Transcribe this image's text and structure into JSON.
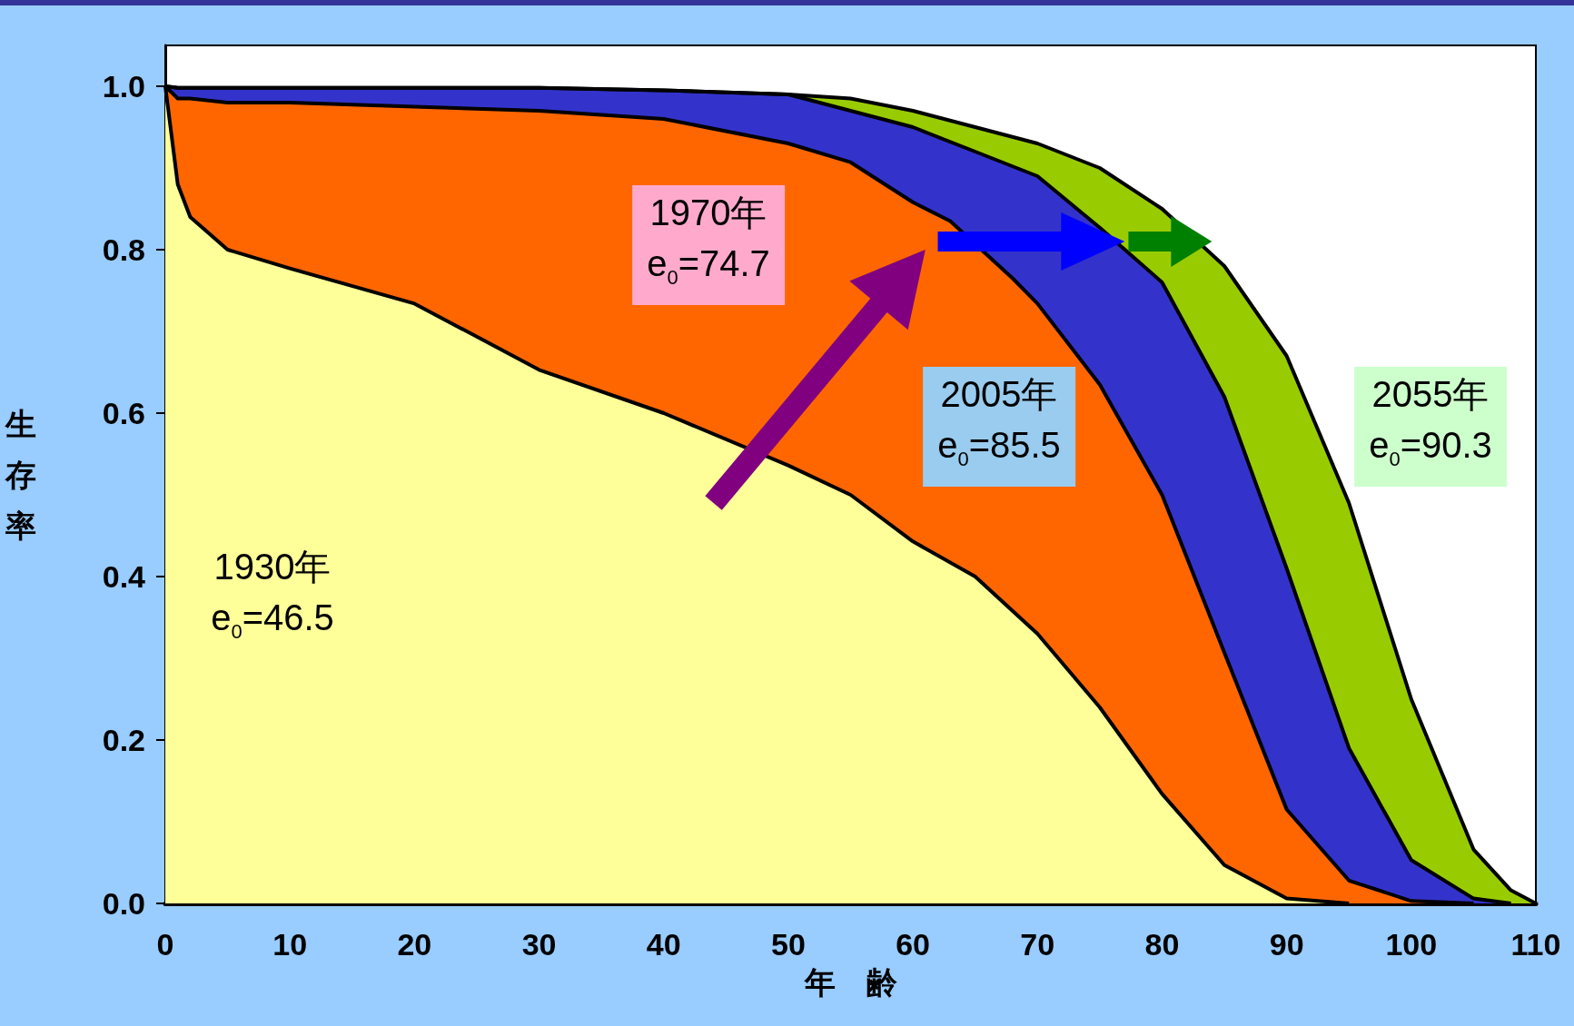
{
  "chart_data": {
    "type": "area",
    "xlabel": "年　齢",
    "ylabel": "生存率",
    "x": [
      0,
      1,
      2,
      5,
      10,
      20,
      30,
      40,
      50,
      55,
      60,
      65,
      70,
      75,
      80,
      85,
      90,
      95,
      100,
      105,
      108,
      110
    ],
    "series": [
      {
        "color": "#99cc00",
        "values": [
          1.0,
          0.998,
          0.998,
          0.998,
          0.998,
          0.998,
          0.998,
          0.995,
          0.99,
          0.985,
          0.97,
          0.95,
          0.93,
          0.9,
          0.85,
          0.78,
          0.67,
          0.49,
          0.25,
          0.066,
          0.016,
          0
        ]
      },
      {
        "color": "#3333cc",
        "x": [
          0,
          1,
          2,
          5,
          10,
          20,
          30,
          40,
          50,
          55,
          60,
          65,
          70,
          75,
          80,
          85,
          90,
          95,
          100,
          105,
          108
        ],
        "values": [
          1.0,
          0.998,
          0.998,
          0.998,
          0.998,
          0.998,
          0.998,
          0.995,
          0.99,
          0.97,
          0.95,
          0.92,
          0.89,
          0.827,
          0.76,
          0.62,
          0.41,
          0.19,
          0.053,
          0.006,
          0
        ]
      },
      {
        "color": "#ff6600",
        "x": [
          0,
          1,
          2,
          5,
          10,
          20,
          30,
          40,
          50,
          55,
          60,
          63,
          68,
          70,
          75,
          80,
          85,
          90,
          95,
          100,
          105
        ],
        "values": [
          1.0,
          0.985,
          0.985,
          0.98,
          0.98,
          0.975,
          0.97,
          0.96,
          0.93,
          0.907,
          0.858,
          0.835,
          0.765,
          0.734,
          0.635,
          0.5,
          0.307,
          0.115,
          0.028,
          0.003,
          0
        ]
      },
      {
        "color": "#ffff99",
        "x": [
          0,
          1,
          2,
          5,
          10,
          20,
          30,
          40,
          50,
          55,
          60,
          65,
          70,
          75,
          80,
          85,
          90,
          95
        ],
        "values": [
          1.0,
          0.88,
          0.84,
          0.8,
          0.777,
          0.734,
          0.653,
          0.6,
          0.536,
          0.5,
          0.443,
          0.4,
          0.33,
          0.24,
          0.134,
          0.047,
          0.006,
          0
        ]
      }
    ],
    "xlim": [
      0,
      110
    ],
    "xticks": [
      0,
      10,
      20,
      30,
      40,
      50,
      60,
      70,
      80,
      90,
      100,
      110
    ],
    "ylim": [
      0,
      1.05
    ],
    "yticks": [
      {
        "value": 0,
        "label": "0.0"
      },
      {
        "value": 0.2,
        "label": "0.2"
      },
      {
        "value": 0.4,
        "label": "0.4"
      },
      {
        "value": 0.6,
        "label": "0.6"
      },
      {
        "value": 0.8,
        "label": "0.8"
      },
      {
        "value": 1.0,
        "label": "1.0"
      }
    ],
    "annotations": [
      "1930年\ne$_{0}$=46.5",
      "1970年\ne$_{0}$=74.7",
      "2005年\ne$_{0}$=85.5",
      "2055年\ne$_{0}$=90.3"
    ],
    "grid": false,
    "marker": "none",
    "line_style": "solid"
  }
}
